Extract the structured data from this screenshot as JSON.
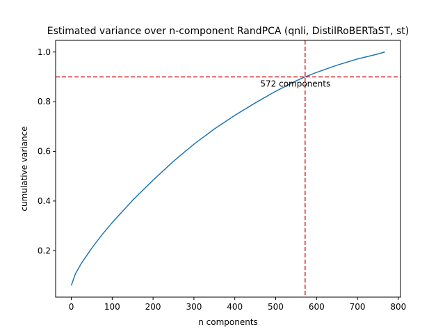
{
  "chart_data": {
    "type": "line",
    "title": "Estimated variance over n-component RandPCA (qnli, DistilRoBERTaST, st)",
    "xlabel": "n components",
    "ylabel": "cumulative variance",
    "xlim": [
      -38.35,
      805.35
    ],
    "ylim": [
      0.013,
      1.047
    ],
    "xticks": [
      0,
      100,
      200,
      300,
      400,
      500,
      600,
      700,
      800
    ],
    "yticks": [
      0.2,
      0.4,
      0.6,
      0.8,
      1.0
    ],
    "grid": false,
    "series": [
      {
        "color": "#1f77b4",
        "x": [
          0,
          10,
          25,
          50,
          75,
          100,
          150,
          200,
          250,
          300,
          350,
          400,
          450,
          500,
          550,
          572,
          600,
          650,
          700,
          750,
          767
        ],
        "y": [
          0.06,
          0.107,
          0.15,
          0.21,
          0.264,
          0.313,
          0.403,
          0.484,
          0.56,
          0.629,
          0.69,
          0.745,
          0.795,
          0.842,
          0.884,
          0.9,
          0.918,
          0.947,
          0.972,
          0.992,
          1.0
        ]
      }
    ],
    "threshold": {
      "y": 0.9,
      "x": 572,
      "color": "#d62728"
    },
    "annotation": "572 components"
  }
}
